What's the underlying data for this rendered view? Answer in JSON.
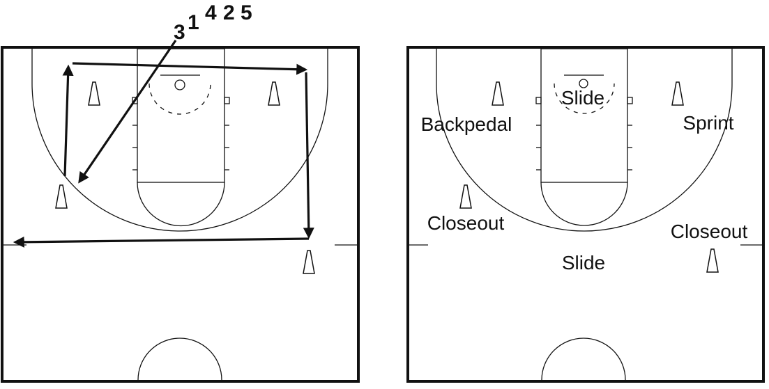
{
  "left_court": {
    "sequence_numbers": [
      "3",
      "1",
      "4",
      "2",
      "5"
    ]
  },
  "right_court": {
    "labels": {
      "slide_top": "Slide",
      "backpedal": "Backpedal",
      "sprint": "Sprint",
      "closeout_left": "Closeout",
      "closeout_right": "Closeout",
      "slide_bottom": "Slide"
    }
  }
}
